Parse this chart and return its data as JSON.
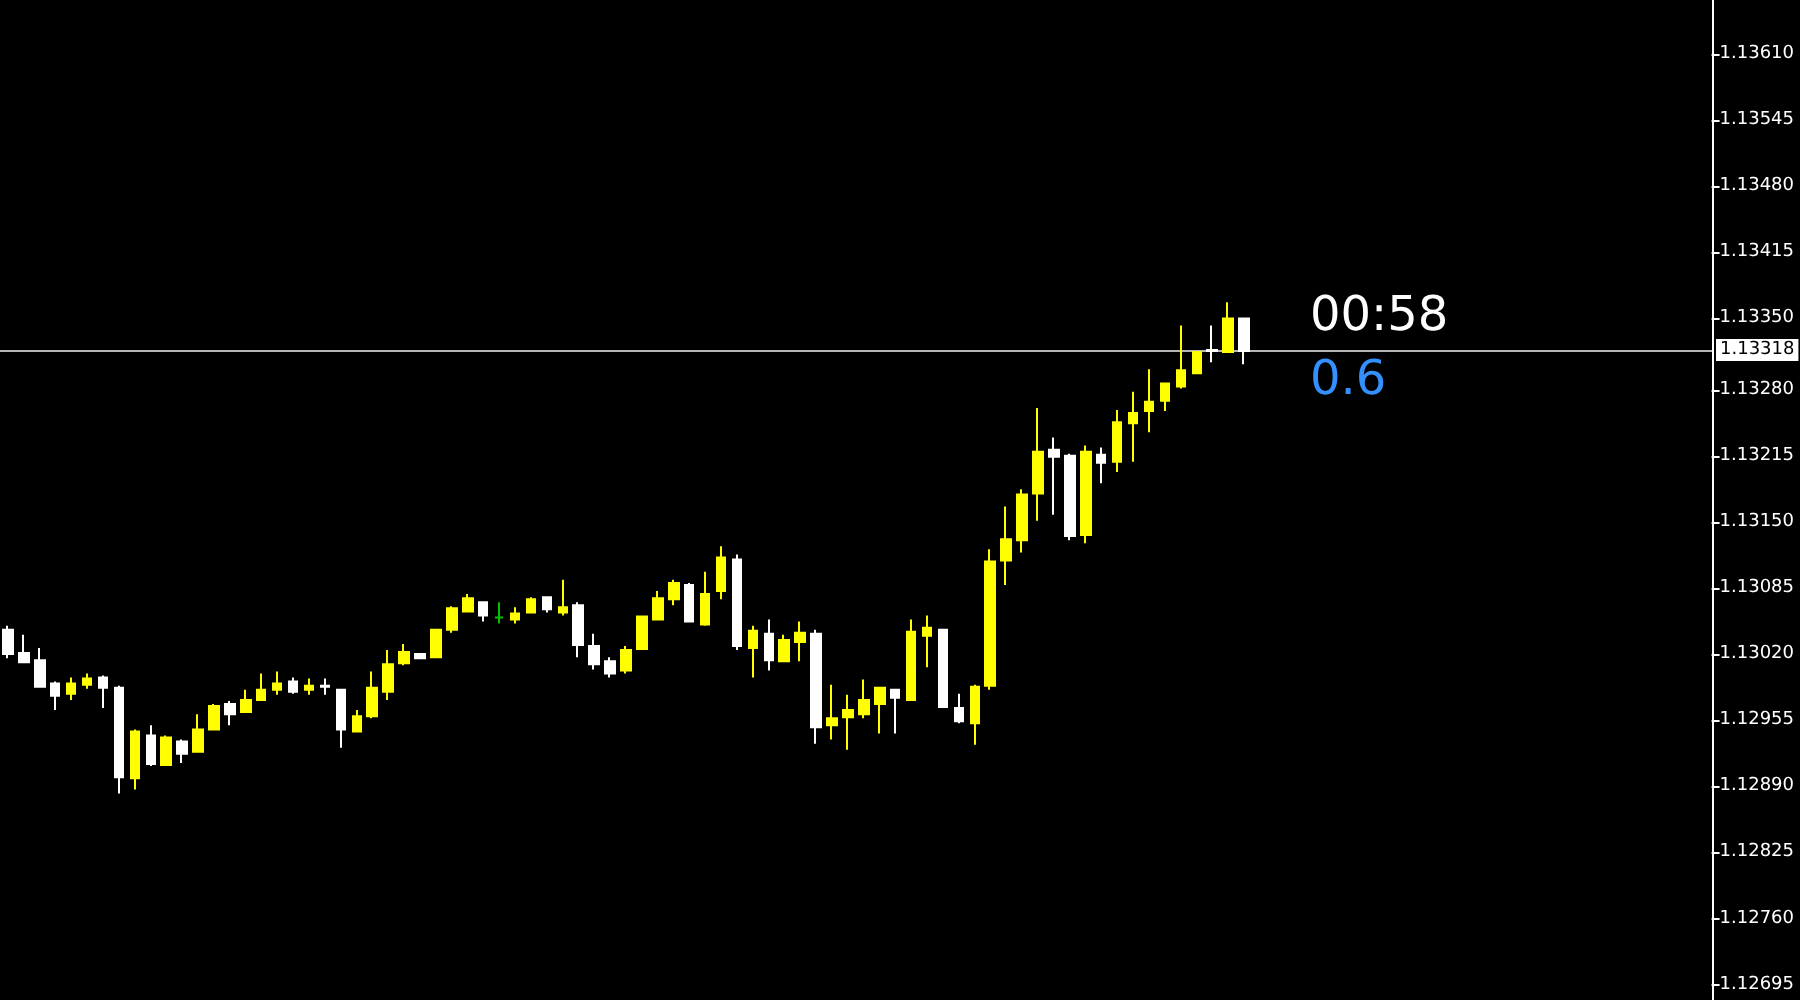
{
  "chart_data": {
    "type": "candlestick",
    "categories": [
      null,
      null,
      null,
      null,
      null,
      null,
      null,
      null,
      null,
      null,
      null,
      null,
      null,
      null,
      null,
      null,
      null,
      null,
      null,
      null,
      null,
      null,
      null,
      null,
      null,
      null,
      null,
      null,
      null,
      null,
      null,
      null,
      null,
      null,
      null,
      null,
      null,
      null,
      null,
      null,
      null,
      null,
      null,
      null,
      null,
      null,
      null,
      null,
      null,
      null,
      null,
      null,
      null,
      null,
      null,
      null,
      null,
      null,
      null,
      null,
      null,
      null,
      null,
      null,
      null,
      null,
      null,
      null,
      null,
      null,
      null,
      null,
      null,
      null,
      null,
      null,
      null,
      null,
      null,
      null,
      null,
      null,
      null,
      null,
      null,
      null,
      null,
      null,
      null,
      null,
      null,
      null,
      null,
      null,
      null,
      null,
      null,
      null,
      null,
      null,
      null,
      null,
      null,
      null,
      null,
      null,
      null,
      null
    ],
    "ohlc": [
      [
        1.13044,
        1.13048,
        1.13016,
        1.1302
      ],
      [
        1.13021,
        1.13039,
        1.13011,
        1.13012
      ],
      [
        1.13014,
        1.13026,
        1.12987,
        1.12988
      ],
      [
        1.12991,
        1.12993,
        1.12965,
        1.12979
      ],
      [
        1.12981,
        1.12997,
        1.12975,
        1.12991
      ],
      [
        1.1299,
        1.13001,
        1.12986,
        1.12996
      ],
      [
        1.12997,
        1.12999,
        1.12967,
        1.12987
      ],
      [
        1.12987,
        1.12989,
        1.12883,
        1.12899
      ],
      [
        1.12898,
        1.12946,
        1.12887,
        1.12944
      ],
      [
        1.1294,
        1.1295,
        1.1291,
        1.12912
      ],
      [
        1.12911,
        1.1294,
        1.1291,
        1.12938
      ],
      [
        1.12934,
        1.12936,
        1.12913,
        1.12922
      ],
      [
        1.12924,
        1.12961,
        1.12923,
        1.12946
      ],
      [
        1.12946,
        1.12971,
        1.12945,
        1.12969
      ],
      [
        1.12971,
        1.12974,
        1.1295,
        1.12961
      ],
      [
        1.12963,
        1.12985,
        1.12962,
        1.12975
      ],
      [
        1.12975,
        1.13001,
        1.12974,
        1.12985
      ],
      [
        1.12985,
        1.13003,
        1.1298,
        1.12991
      ],
      [
        1.12993,
        1.12997,
        1.12981,
        1.12983
      ],
      [
        1.12985,
        1.12996,
        1.1298,
        1.12989
      ],
      [
        1.12989,
        1.12996,
        1.1298,
        1.12988
      ],
      [
        1.12985,
        1.12986,
        1.12928,
        1.12946
      ],
      [
        1.12944,
        1.12965,
        1.12943,
        1.12959
      ],
      [
        1.12959,
        1.13003,
        1.12957,
        1.12987
      ],
      [
        1.12983,
        1.13024,
        1.12975,
        1.1301
      ],
      [
        1.13011,
        1.1303,
        1.13009,
        1.13022
      ],
      [
        1.1302,
        1.13021,
        1.13015,
        1.13016
      ],
      [
        1.13017,
        1.13045,
        1.13016,
        1.13044
      ],
      [
        1.13044,
        1.13067,
        1.13041,
        1.13065
      ],
      [
        1.13062,
        1.13079,
        1.13061,
        1.13075
      ],
      [
        1.13071,
        1.13072,
        1.13052,
        1.13058
      ],
      [
        1.13056,
        1.13071,
        1.1305,
        1.13056
      ],
      [
        1.13054,
        1.13066,
        1.1305,
        1.1306
      ],
      [
        1.13061,
        1.13076,
        1.1306,
        1.13074
      ],
      [
        1.13076,
        1.13077,
        1.13061,
        1.13064
      ],
      [
        1.13061,
        1.13093,
        1.13058,
        1.13066
      ],
      [
        1.13068,
        1.13071,
        1.13017,
        1.13029
      ],
      [
        1.13028,
        1.1304,
        1.13005,
        1.1301
      ],
      [
        1.13013,
        1.13017,
        1.12997,
        1.13001
      ],
      [
        1.13004,
        1.13028,
        1.13001,
        1.13024
      ],
      [
        1.13025,
        1.13058,
        1.13024,
        1.13057
      ],
      [
        1.13054,
        1.13082,
        1.13053,
        1.13075
      ],
      [
        1.13074,
        1.13093,
        1.13068,
        1.1309
      ],
      [
        1.13088,
        1.1309,
        1.13051,
        1.13052
      ],
      [
        1.13049,
        1.13101,
        1.13048,
        1.13079
      ],
      [
        1.13082,
        1.13126,
        1.13074,
        1.13115
      ],
      [
        1.13113,
        1.13118,
        1.13024,
        1.13028
      ],
      [
        1.13026,
        1.13048,
        1.12997,
        1.13043
      ],
      [
        1.1304,
        1.13054,
        1.13004,
        1.13014
      ],
      [
        1.13013,
        1.13039,
        1.13012,
        1.13034
      ],
      [
        1.13032,
        1.13052,
        1.13013,
        1.13041
      ],
      [
        1.1304,
        1.13044,
        1.12932,
        1.12948
      ],
      [
        1.1295,
        1.1299,
        1.12936,
        1.12957
      ],
      [
        1.12958,
        1.1298,
        1.12926,
        1.12965
      ],
      [
        1.12961,
        1.12995,
        1.12957,
        1.12975
      ],
      [
        1.12971,
        1.12988,
        1.12942,
        1.12987
      ],
      [
        1.12985,
        1.12986,
        1.12942,
        1.12977
      ],
      [
        1.12975,
        1.13054,
        1.12974,
        1.13042
      ],
      [
        1.13038,
        1.13058,
        1.13007,
        1.13046
      ],
      [
        1.13044,
        1.13045,
        1.12967,
        1.12968
      ],
      [
        1.12967,
        1.12981,
        1.12952,
        1.12954
      ],
      [
        1.12952,
        1.1299,
        1.12931,
        1.12988
      ],
      [
        1.12989,
        1.13123,
        1.12985,
        1.13111
      ],
      [
        1.13112,
        1.13165,
        1.13088,
        1.13133
      ],
      [
        1.13132,
        1.13182,
        1.1312,
        1.13177
      ],
      [
        1.13178,
        1.13262,
        1.13151,
        1.13219
      ],
      [
        1.13221,
        1.13233,
        1.13157,
        1.13214
      ],
      [
        1.13215,
        1.13217,
        1.13132,
        1.13136
      ],
      [
        1.13137,
        1.13225,
        1.13129,
        1.13219
      ],
      [
        1.13216,
        1.13223,
        1.13188,
        1.13208
      ],
      [
        1.13209,
        1.1326,
        1.13199,
        1.13248
      ],
      [
        1.13247,
        1.13278,
        1.13209,
        1.13257
      ],
      [
        1.13259,
        1.133,
        1.13238,
        1.13268
      ],
      [
        1.13269,
        1.13287,
        1.13259,
        1.13286
      ],
      [
        1.13283,
        1.13343,
        1.13281,
        1.13299
      ],
      [
        1.13296,
        1.13318,
        1.13295,
        1.13317
      ],
      [
        1.13319,
        1.13343,
        1.13307,
        1.13318
      ],
      [
        1.13317,
        1.13366,
        1.13316,
        1.1335
      ],
      [
        1.1335,
        1.13351,
        1.13305,
        1.13318
      ],
      null,
      null,
      null,
      null,
      null,
      null,
      null,
      null,
      null,
      null,
      null,
      null,
      null,
      null,
      null,
      null,
      null,
      null,
      null,
      null,
      null,
      null,
      null,
      null,
      null,
      null,
      null,
      null,
      null
    ],
    "colors": [
      "#ffffff",
      "#ffffff",
      "#ffffff",
      "#ffffff",
      "#ffff00",
      "#ffff00",
      "#ffffff",
      "#ffffff",
      "#ffff00",
      "#ffffff",
      "#ffff00",
      "#ffffff",
      "#ffff00",
      "#ffff00",
      "#ffffff",
      "#ffff00",
      "#ffff00",
      "#ffff00",
      "#ffffff",
      "#ffff00",
      "#ffffff",
      "#ffffff",
      "#ffff00",
      "#ffff00",
      "#ffff00",
      "#ffff00",
      "#ffffff",
      "#ffff00",
      "#ffff00",
      "#ffff00",
      "#ffffff",
      "#00c000",
      "#ffff00",
      "#ffff00",
      "#ffffff",
      "#ffff00",
      "#ffffff",
      "#ffffff",
      "#ffffff",
      "#ffff00",
      "#ffff00",
      "#ffff00",
      "#ffff00",
      "#ffffff",
      "#ffff00",
      "#ffff00",
      "#ffffff",
      "#ffff00",
      "#ffffff",
      "#ffff00",
      "#ffff00",
      "#ffffff",
      "#ffff00",
      "#ffff00",
      "#ffff00",
      "#ffff00",
      "#ffffff",
      "#ffff00",
      "#ffff00",
      "#ffffff",
      "#ffffff",
      "#ffff00",
      "#ffff00",
      "#ffff00",
      "#ffff00",
      "#ffff00",
      "#ffffff",
      "#ffffff",
      "#ffff00",
      "#ffffff",
      "#ffff00",
      "#ffff00",
      "#ffff00",
      "#ffff00",
      "#ffff00",
      "#ffff00",
      "#ffffff",
      "#ffff00",
      "#ffffff",
      null,
      null,
      null,
      null,
      null,
      null,
      null,
      null,
      null,
      null,
      null,
      null,
      null,
      null,
      null,
      null,
      null,
      null,
      null,
      null,
      null,
      null,
      null,
      null,
      null,
      null,
      null,
      null,
      null
    ],
    "ylim": [
      1.1268,
      1.13663
    ],
    "yticks": [
      1.12695,
      {
        "value": 1.1276,
        "label": "1.12760"
      },
      1.12825,
      {
        "value": 1.1289,
        "label": "1.12890"
      },
      1.12955,
      {
        "value": 1.1302,
        "label": "1.13020"
      },
      1.13085,
      {
        "value": 1.1315,
        "label": "1.13150"
      },
      1.13215,
      {
        "value": 1.1328,
        "label": "1.13280"
      },
      {
        "value": 1.1335,
        "label": "1.13350"
      },
      1.13415,
      {
        "value": 1.1348,
        "label": "1.13480"
      },
      1.13545,
      {
        "value": 1.1361,
        "label": "1.13610"
      }
    ],
    "tick_labels": "y",
    "grid": false,
    "ref_lines": [
      {
        "axis": "y",
        "value": 1.13318,
        "label": "1.13318",
        "color": "#b4b4b4"
      }
    ],
    "annotations": [
      "00:58",
      "0.6"
    ]
  }
}
